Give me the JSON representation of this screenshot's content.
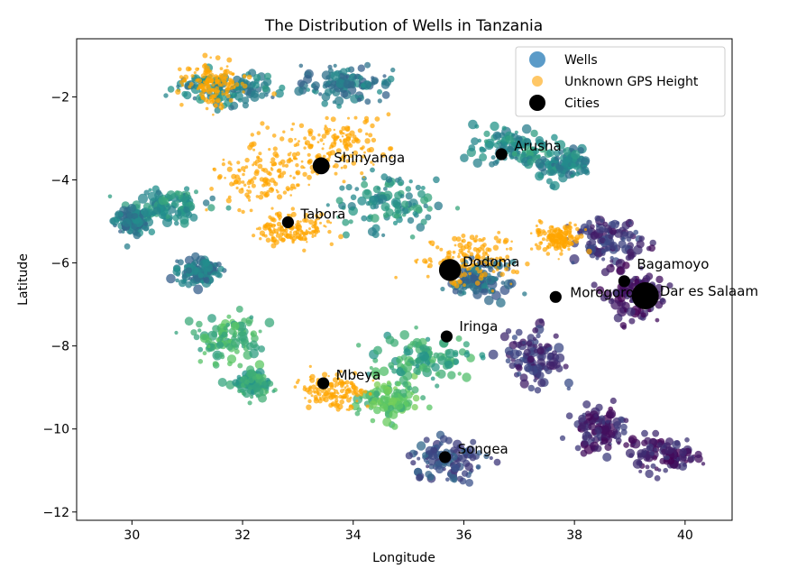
{
  "chart_data": {
    "type": "scatter",
    "title": "The Distribution of Wells in Tanzania",
    "xlabel": "Longitude",
    "ylabel": "Latitude",
    "xlim": [
      29.0,
      40.85
    ],
    "ylim": [
      -12.2,
      -0.6
    ],
    "xticks": [
      30,
      32,
      34,
      36,
      38,
      40
    ],
    "yticks": [
      -2,
      -4,
      -6,
      -8,
      -10,
      -12
    ],
    "grid": false,
    "legend_position": "top-right",
    "legend": [
      "Wells",
      "Unknown GPS Height",
      "Cities"
    ],
    "colors": {
      "wells_colormap": [
        "#440154",
        "#3b528b",
        "#21918c",
        "#5ec962",
        "#fde725"
      ],
      "wells_legend": "#5b9bc8",
      "unknown_gps_height": "#ffa500",
      "cities": "#000000"
    },
    "series": [
      {
        "name": "Wells",
        "color_by": "gps_height",
        "clusters": [
          {
            "lon": 31.7,
            "lat": -1.8,
            "spread_lon": 1.0,
            "spread_lat": 0.4,
            "v": 0.45
          },
          {
            "lon": 33.9,
            "lat": -1.7,
            "spread_lon": 0.8,
            "spread_lat": 0.4,
            "v": 0.4
          },
          {
            "lon": 30.6,
            "lat": -4.6,
            "spread_lon": 0.7,
            "spread_lat": 0.4,
            "v": 0.5
          },
          {
            "lon": 30.0,
            "lat": -5.0,
            "spread_lon": 0.3,
            "spread_lat": 0.3,
            "v": 0.4
          },
          {
            "lon": 31.2,
            "lat": -6.2,
            "spread_lon": 0.4,
            "spread_lat": 0.3,
            "v": 0.4
          },
          {
            "lon": 31.7,
            "lat": -7.8,
            "spread_lon": 0.6,
            "spread_lat": 0.6,
            "v": 0.65
          },
          {
            "lon": 32.2,
            "lat": -8.9,
            "spread_lon": 0.3,
            "spread_lat": 0.3,
            "v": 0.6
          },
          {
            "lon": 34.7,
            "lat": -9.3,
            "spread_lon": 0.5,
            "spread_lat": 0.5,
            "v": 0.7
          },
          {
            "lon": 35.3,
            "lat": -8.3,
            "spread_lon": 0.8,
            "spread_lat": 0.5,
            "v": 0.6
          },
          {
            "lon": 34.6,
            "lat": -4.6,
            "spread_lon": 0.9,
            "spread_lat": 0.6,
            "v": 0.5
          },
          {
            "lon": 36.9,
            "lat": -3.2,
            "spread_lon": 0.7,
            "spread_lat": 0.5,
            "v": 0.5
          },
          {
            "lon": 37.8,
            "lat": -3.6,
            "spread_lon": 0.5,
            "spread_lat": 0.4,
            "v": 0.45
          },
          {
            "lon": 38.6,
            "lat": -5.5,
            "spread_lon": 0.6,
            "spread_lat": 0.5,
            "v": 0.15
          },
          {
            "lon": 39.1,
            "lat": -6.8,
            "spread_lon": 0.5,
            "spread_lat": 0.7,
            "v": 0.05
          },
          {
            "lon": 37.3,
            "lat": -8.3,
            "spread_lon": 0.5,
            "spread_lat": 0.7,
            "v": 0.15
          },
          {
            "lon": 39.6,
            "lat": -10.6,
            "spread_lon": 0.6,
            "spread_lat": 0.4,
            "v": 0.08
          },
          {
            "lon": 38.5,
            "lat": -10.0,
            "spread_lon": 0.5,
            "spread_lat": 0.5,
            "v": 0.1
          },
          {
            "lon": 35.7,
            "lat": -10.8,
            "spread_lon": 0.7,
            "spread_lat": 0.5,
            "v": 0.25
          },
          {
            "lon": 36.3,
            "lat": -6.4,
            "spread_lon": 0.5,
            "spread_lat": 0.4,
            "v": 0.35
          }
        ]
      },
      {
        "name": "Unknown GPS Height",
        "clusters": [
          {
            "lon": 31.5,
            "lat": -1.7,
            "spread_lon": 0.5,
            "spread_lat": 0.5
          },
          {
            "lon": 33.6,
            "lat": -3.2,
            "spread_lon": 1.1,
            "spread_lat": 0.7
          },
          {
            "lon": 32.4,
            "lat": -3.9,
            "spread_lon": 0.9,
            "spread_lat": 0.8
          },
          {
            "lon": 32.9,
            "lat": -5.2,
            "spread_lon": 0.6,
            "spread_lat": 0.4
          },
          {
            "lon": 33.6,
            "lat": -9.1,
            "spread_lon": 0.6,
            "spread_lat": 0.4
          },
          {
            "lon": 36.1,
            "lat": -5.9,
            "spread_lon": 0.8,
            "spread_lat": 0.6
          },
          {
            "lon": 37.7,
            "lat": -5.4,
            "spread_lon": 0.4,
            "spread_lat": 0.3
          }
        ]
      }
    ],
    "cities": [
      {
        "name": "Shinyanga",
        "lon": 33.42,
        "lat": -3.66,
        "size": 6
      },
      {
        "name": "Tabora",
        "lon": 32.82,
        "lat": -5.02,
        "size": 4
      },
      {
        "name": "Arusha",
        "lon": 36.68,
        "lat": -3.38,
        "size": 4
      },
      {
        "name": "Dodoma",
        "lon": 35.75,
        "lat": -6.17,
        "size": 8
      },
      {
        "name": "Bagamoyo",
        "lon": 38.9,
        "lat": -6.44,
        "size": 4
      },
      {
        "name": "Morogoro",
        "lon": 37.66,
        "lat": -6.82,
        "size": 4
      },
      {
        "name": "Dar es Salaam",
        "lon": 39.28,
        "lat": -6.79,
        "size": 10
      },
      {
        "name": "Iringa",
        "lon": 35.69,
        "lat": -7.77,
        "size": 4
      },
      {
        "name": "Mbeya",
        "lon": 33.46,
        "lat": -8.9,
        "size": 4
      },
      {
        "name": "Songea",
        "lon": 35.66,
        "lat": -10.68,
        "size": 4
      }
    ]
  }
}
